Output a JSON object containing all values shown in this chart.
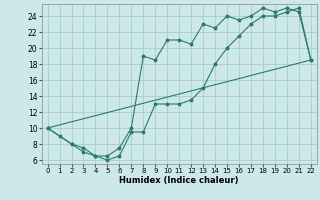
{
  "xlabel": "Humidex (Indice chaleur)",
  "bg_color": "#cce8e8",
  "grid_color": "#aacccc",
  "line_color": "#2a7a6a",
  "xlim": [
    -0.5,
    22.5
  ],
  "ylim": [
    5.5,
    25.5
  ],
  "xticks": [
    0,
    1,
    2,
    3,
    4,
    5,
    6,
    7,
    8,
    9,
    10,
    11,
    12,
    13,
    14,
    15,
    16,
    17,
    18,
    19,
    20,
    21,
    22
  ],
  "yticks": [
    6,
    8,
    10,
    12,
    14,
    16,
    18,
    20,
    22,
    24
  ],
  "line1_x": [
    0,
    1,
    2,
    3,
    4,
    5,
    6,
    7,
    8,
    9,
    10,
    11,
    12,
    13,
    14,
    15,
    16,
    17,
    18,
    19,
    20,
    21,
    22
  ],
  "line1_y": [
    10,
    9,
    8,
    7,
    6.5,
    6.5,
    7.5,
    10,
    19,
    18.5,
    21,
    21,
    20.5,
    23,
    22.5,
    24,
    23.5,
    24,
    25,
    24.5,
    25,
    24.5,
    18.5
  ],
  "line2_x": [
    0,
    2,
    3,
    4,
    5,
    6,
    7,
    8,
    9,
    10,
    11,
    12,
    13,
    14,
    15,
    16,
    17,
    18,
    19,
    20,
    21,
    22
  ],
  "line2_y": [
    10,
    8,
    7.5,
    6.5,
    6,
    6.5,
    9.5,
    9.5,
    13,
    13,
    13,
    13.5,
    15,
    18,
    20,
    21.5,
    23,
    24,
    24,
    24.5,
    25,
    18.5
  ],
  "line3_x": [
    0,
    22
  ],
  "line3_y": [
    10,
    18.5
  ]
}
